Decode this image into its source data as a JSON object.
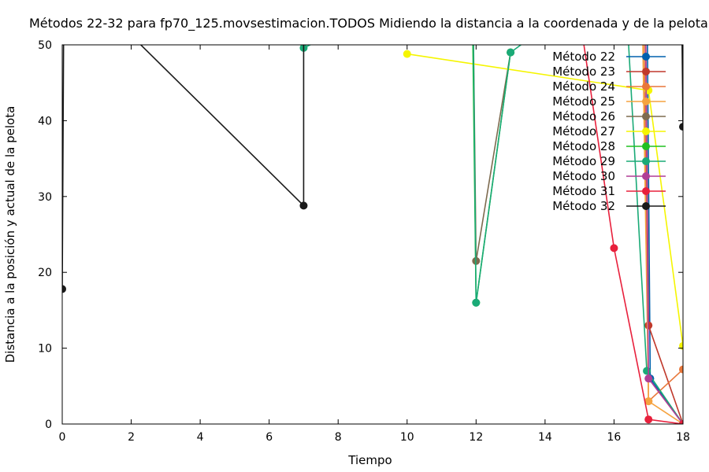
{
  "chart_data": {
    "type": "line",
    "title": "Métodos 22-32 para fp70_125.movsestimacion.TODOS Midiendo la distancia a la coordenada y de la pelota",
    "xlabel": "Tiempo",
    "ylabel": "Distancia a la posición y actual de la pelota",
    "xlim": [
      0,
      18
    ],
    "ylim": [
      0,
      50
    ],
    "xticks": [
      0,
      2,
      4,
      6,
      8,
      10,
      12,
      14,
      16,
      18
    ],
    "yticks": [
      0,
      10,
      20,
      30,
      40,
      50
    ],
    "grid": false,
    "legend_position": "top-right",
    "series": [
      {
        "name": "Método 22",
        "color": "#0060ad",
        "points": [
          [
            16.95,
            60
          ],
          [
            17.05,
            6
          ],
          [
            18,
            0
          ]
        ]
      },
      {
        "name": "Método 23",
        "color": "#c0392b",
        "points": [
          [
            16.9,
            60
          ],
          [
            17.0,
            13
          ],
          [
            18,
            0
          ]
        ]
      },
      {
        "name": "Método 24",
        "color": "#e8773a",
        "points": [
          [
            16.85,
            60
          ],
          [
            17.0,
            3
          ],
          [
            18,
            7.2
          ]
        ]
      },
      {
        "name": "Método 25",
        "color": "#f5a340",
        "points": [
          [
            16.8,
            60
          ],
          [
            17.0,
            3
          ],
          [
            18,
            0
          ]
        ]
      },
      {
        "name": "Método 26",
        "color": "#7d6b4f",
        "points": [
          [
            11.9,
            60
          ],
          [
            12.0,
            21.5
          ],
          [
            13.0,
            49
          ]
        ]
      },
      {
        "name": "Método 27",
        "color": "#f5f500",
        "points": [
          [
            10.0,
            48.8
          ],
          [
            17.0,
            44
          ],
          [
            18,
            10.3
          ]
        ]
      },
      {
        "name": "Método 28",
        "color": "#20c020",
        "points": [
          [
            11.88,
            60
          ],
          [
            12.0,
            16
          ],
          [
            13.0,
            49
          ]
        ]
      },
      {
        "name": "Método 29",
        "color": "#1aaa77",
        "points": [
          [
            7.0,
            49.6
          ],
          [
            11.9,
            60
          ],
          [
            12.0,
            16
          ],
          [
            13.0,
            49
          ],
          [
            16.3,
            60
          ],
          [
            16.95,
            7
          ],
          [
            18,
            0
          ]
        ]
      },
      {
        "name": "Método 30",
        "color": "#b03d96",
        "points": [
          [
            16.9,
            60
          ],
          [
            17.0,
            6
          ],
          [
            18,
            0
          ]
        ]
      },
      {
        "name": "Método 31",
        "color": "#e8203c",
        "points": [
          [
            14.8,
            60
          ],
          [
            16.0,
            23.2
          ],
          [
            17.0,
            0.6
          ],
          [
            18,
            0
          ]
        ]
      },
      {
        "name": "Método 32",
        "color": "#1a1a1a",
        "points": [
          [
            0.0,
            17.8
          ],
          [
            0.05,
            60
          ],
          [
            7.0,
            28.8
          ],
          [
            7.0,
            60
          ],
          [
            17.95,
            60
          ],
          [
            18,
            39.2
          ]
        ]
      }
    ]
  }
}
